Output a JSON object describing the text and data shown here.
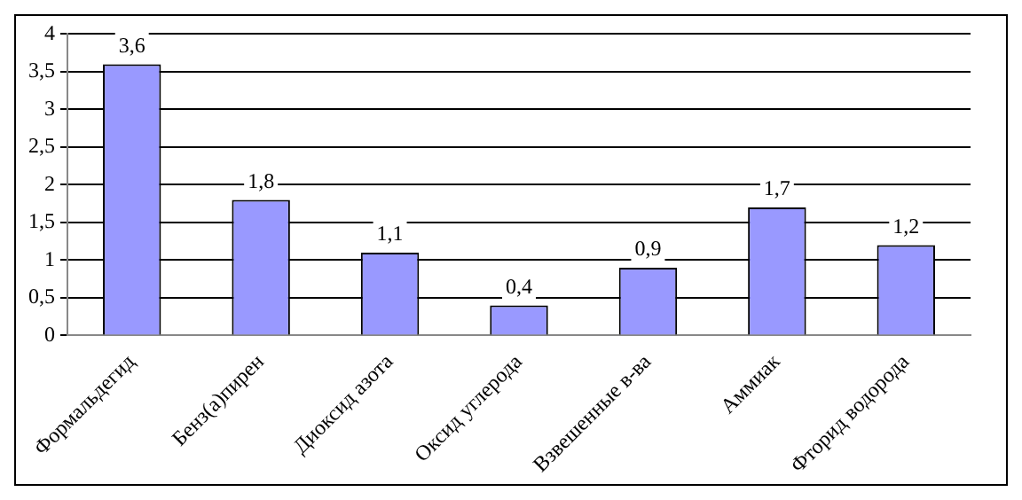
{
  "chart_data": {
    "type": "bar",
    "categories": [
      "Формальдегид",
      "Бенз(а)пирен",
      "Диоксид азота",
      "Оксид углерода",
      "Взвешенные в-ва",
      "Аммиак",
      "Фторид водорода"
    ],
    "values": [
      3.6,
      1.8,
      1.1,
      0.4,
      0.9,
      1.7,
      1.2
    ],
    "value_labels": [
      "3,6",
      "1,8",
      "1,1",
      "0,4",
      "0,9",
      "1,7",
      "1,2"
    ],
    "color": "#9999ff",
    "ylim": [
      0,
      4
    ],
    "yticks": [
      0,
      {
        "value": 0.5,
        "label": "0,5"
      },
      1,
      {
        "value": 1.5,
        "label": "1,5"
      },
      2,
      {
        "value": 2.5,
        "label": "2,5"
      },
      3,
      {
        "value": 3.5,
        "label": "3,5"
      },
      4
    ],
    "grid": "y",
    "legend": false
  }
}
